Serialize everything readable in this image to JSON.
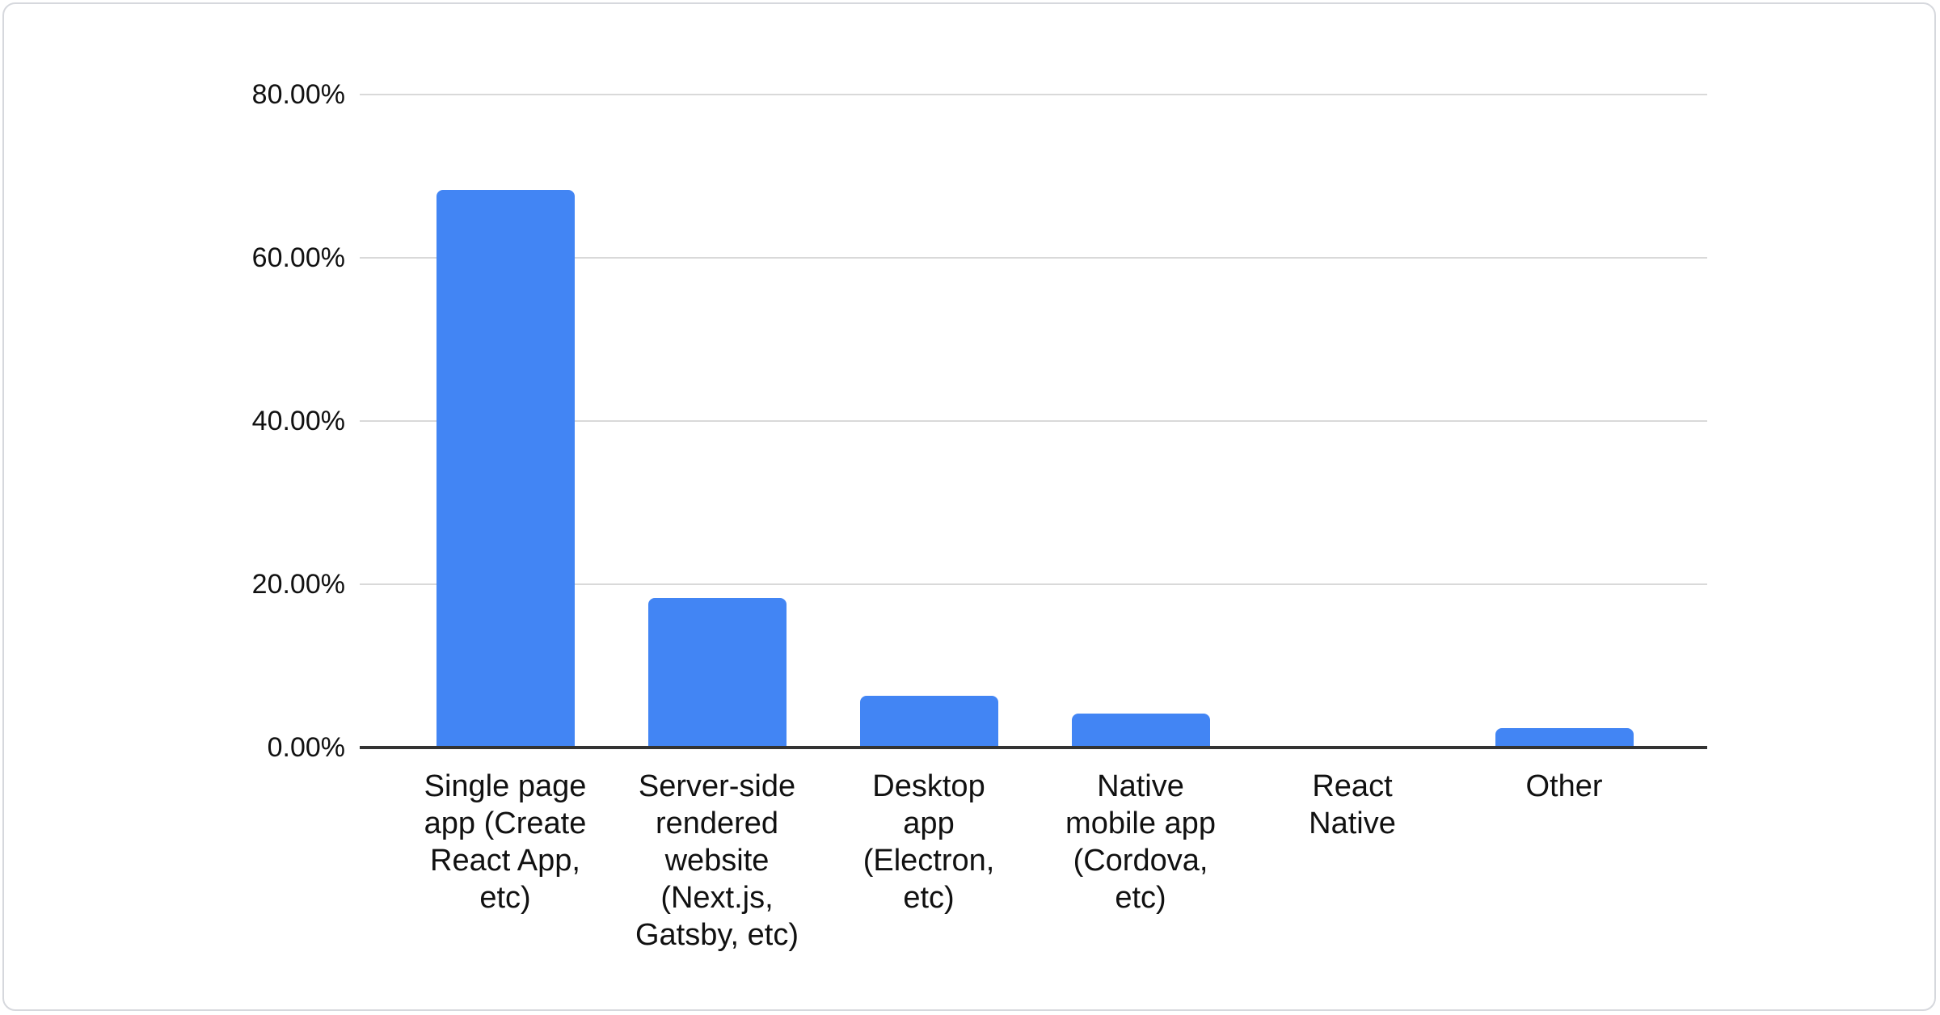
{
  "chart_data": {
    "type": "bar",
    "categories": [
      "Single page app (Create React App, etc)",
      "Server-side rendered website (Next.js, Gatsby, etc)",
      "Desktop app (Electron, etc)",
      "Native mobile app (Cordova, etc)",
      "React Native",
      "Other"
    ],
    "values": [
      68.3,
      18.3,
      6.3,
      4.2,
      0,
      2.4
    ],
    "unit": "%",
    "title": "",
    "xlabel": "",
    "ylabel": "",
    "y_tick_labels": [
      "80.00%",
      "60.00%",
      "40.00%",
      "20.00%",
      "0.00%"
    ],
    "ylim": [
      0,
      80
    ],
    "grid": true,
    "legend": false,
    "bar_color": "#4285f4"
  },
  "colors": {
    "bar": "#4285f4",
    "gridline": "#d9d9d9",
    "axis_line": "#333333",
    "text": "#111111",
    "card_border": "#d6d8dd",
    "background": "#ffffff"
  }
}
